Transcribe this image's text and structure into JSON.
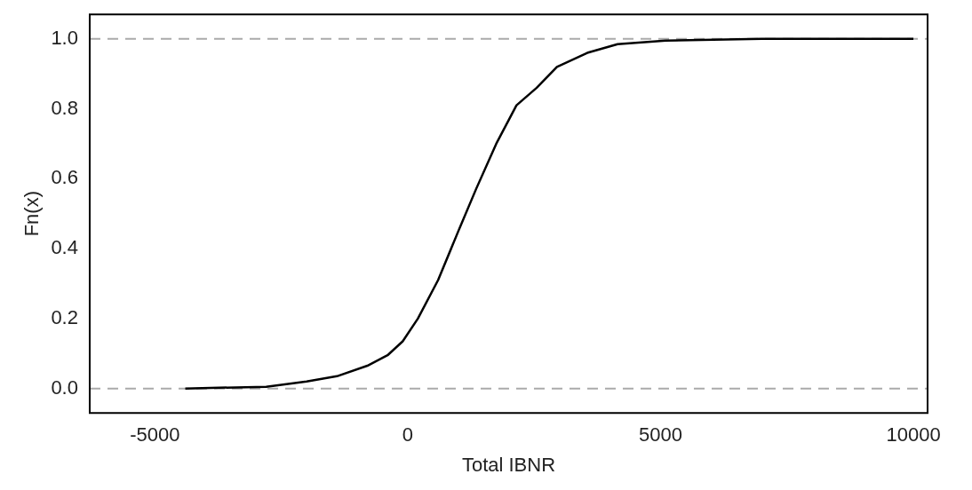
{
  "chart_data": {
    "type": "line",
    "xlabel": "Total IBNR",
    "ylabel": "Fn(x)",
    "xlim": [
      -6290,
      10280
    ],
    "xticks": [
      -5000,
      0,
      5000,
      10000
    ],
    "ylim": [
      -0.07,
      1.07
    ],
    "yticks": [
      {
        "value": 0,
        "label": "0.0"
      },
      {
        "value": 0.2,
        "label": "0.2"
      },
      {
        "value": 0.4,
        "label": "0.4"
      },
      {
        "value": 0.6,
        "label": "0.6"
      },
      {
        "value": 0.8,
        "label": "0.8"
      },
      {
        "value": 1,
        "label": "1.0"
      }
    ],
    "series": [
      {
        "color": "#000000",
        "x": [
          -4400,
          -2800,
          -2000,
          -1400,
          -800,
          -400,
          -100,
          200,
          600,
          1000,
          1350,
          1750,
          2150,
          2550,
          2950,
          3550,
          4150,
          5100,
          7000,
          10000
        ],
        "values": [
          0,
          0.005,
          0.02,
          0.035,
          0.065,
          0.095,
          0.135,
          0.2,
          0.31,
          0.45,
          0.57,
          0.7,
          0.81,
          0.86,
          0.92,
          0.96,
          0.985,
          0.995,
          1,
          1
        ]
      }
    ],
    "ref_lines": [
      {
        "axis": "y",
        "value": 0,
        "color": "#aaaaaa",
        "line_style": "dashed"
      },
      {
        "axis": "y",
        "value": 1,
        "color": "#aaaaaa",
        "line_style": "dashed"
      }
    ],
    "grid": false,
    "legend": false,
    "marker": "none",
    "line_style": "solid"
  }
}
